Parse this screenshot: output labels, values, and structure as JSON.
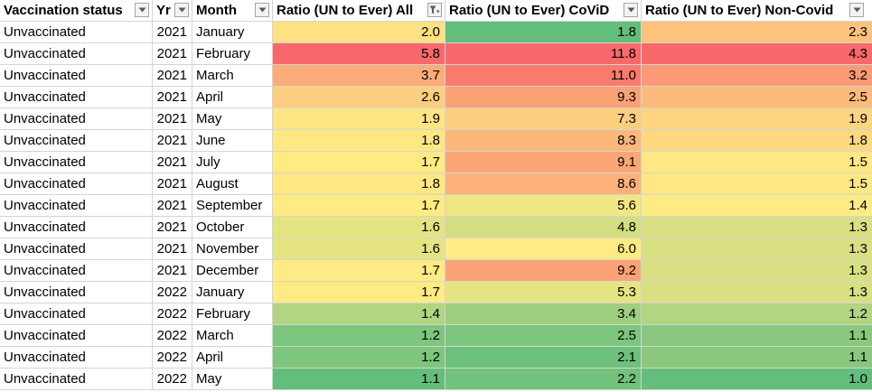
{
  "columns": [
    {
      "label": "Vaccination status",
      "filter_icon": "dropdown-arrow-icon"
    },
    {
      "label": "Yr",
      "filter_icon": "dropdown-arrow-icon"
    },
    {
      "label": "Month",
      "filter_icon": "dropdown-arrow-icon"
    },
    {
      "label": "Ratio (UN to Ever) All",
      "filter_icon": "filter-active-icon"
    },
    {
      "label": "Ratio (UN to Ever) CoViD",
      "filter_icon": "dropdown-arrow-icon"
    },
    {
      "label": "Ratio (UN to Ever) Non-Covid",
      "filter_icon": "dropdown-arrow-icon"
    }
  ],
  "rows": [
    {
      "status": "Unvaccinated",
      "yr": "2021",
      "month": "January",
      "all": "2.0",
      "covid": "1.8",
      "noncovid": "2.3"
    },
    {
      "status": "Unvaccinated",
      "yr": "2021",
      "month": "February",
      "all": "5.8",
      "covid": "11.8",
      "noncovid": "4.3"
    },
    {
      "status": "Unvaccinated",
      "yr": "2021",
      "month": "March",
      "all": "3.7",
      "covid": "11.0",
      "noncovid": "3.2"
    },
    {
      "status": "Unvaccinated",
      "yr": "2021",
      "month": "April",
      "all": "2.6",
      "covid": "9.3",
      "noncovid": "2.5"
    },
    {
      "status": "Unvaccinated",
      "yr": "2021",
      "month": "May",
      "all": "1.9",
      "covid": "7.3",
      "noncovid": "1.9"
    },
    {
      "status": "Unvaccinated",
      "yr": "2021",
      "month": "June",
      "all": "1.8",
      "covid": "8.3",
      "noncovid": "1.8"
    },
    {
      "status": "Unvaccinated",
      "yr": "2021",
      "month": "July",
      "all": "1.7",
      "covid": "9.1",
      "noncovid": "1.5"
    },
    {
      "status": "Unvaccinated",
      "yr": "2021",
      "month": "August",
      "all": "1.8",
      "covid": "8.6",
      "noncovid": "1.5"
    },
    {
      "status": "Unvaccinated",
      "yr": "2021",
      "month": "September",
      "all": "1.7",
      "covid": "5.6",
      "noncovid": "1.4"
    },
    {
      "status": "Unvaccinated",
      "yr": "2021",
      "month": "October",
      "all": "1.6",
      "covid": "4.8",
      "noncovid": "1.3"
    },
    {
      "status": "Unvaccinated",
      "yr": "2021",
      "month": "November",
      "all": "1.6",
      "covid": "6.0",
      "noncovid": "1.3"
    },
    {
      "status": "Unvaccinated",
      "yr": "2021",
      "month": "December",
      "all": "1.7",
      "covid": "9.2",
      "noncovid": "1.3"
    },
    {
      "status": "Unvaccinated",
      "yr": "2022",
      "month": "January",
      "all": "1.7",
      "covid": "5.3",
      "noncovid": "1.3"
    },
    {
      "status": "Unvaccinated",
      "yr": "2022",
      "month": "February",
      "all": "1.4",
      "covid": "3.4",
      "noncovid": "1.2"
    },
    {
      "status": "Unvaccinated",
      "yr": "2022",
      "month": "March",
      "all": "1.2",
      "covid": "2.5",
      "noncovid": "1.1"
    },
    {
      "status": "Unvaccinated",
      "yr": "2022",
      "month": "April",
      "all": "1.2",
      "covid": "2.1",
      "noncovid": "1.1"
    },
    {
      "status": "Unvaccinated",
      "yr": "2022",
      "month": "May",
      "all": "1.1",
      "covid": "2.2",
      "noncovid": "1.0"
    }
  ],
  "colors": {
    "scale_low": "#63be7b",
    "scale_mid": "#ffeb84",
    "scale_high": "#f8696b",
    "grid": "#d4d4d4"
  }
}
